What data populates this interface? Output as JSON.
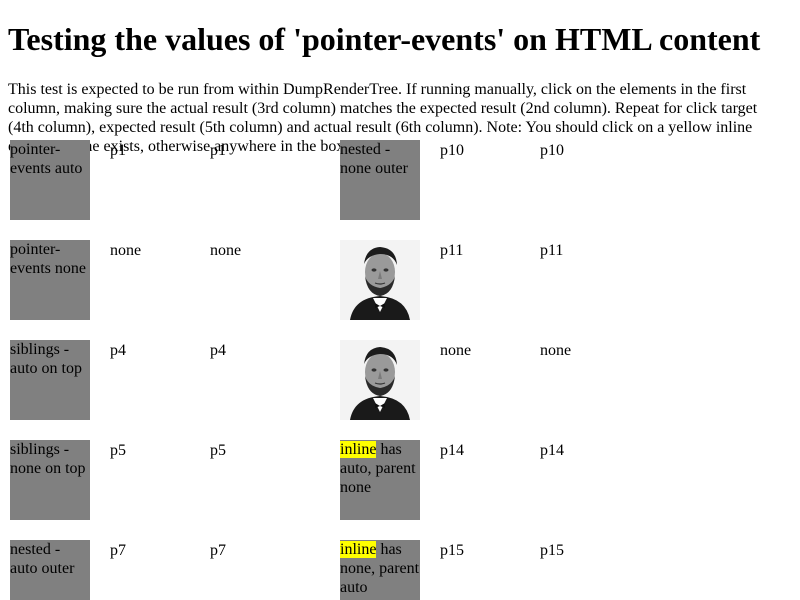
{
  "heading": "Testing the values of 'pointer-events' on HTML content",
  "description": "This test is expected to be run from within DumpRenderTree. If running manually, click on the elements in the first column, making sure the actual result (3rd column) matches the expected result (2nd column). Repeat for click target (4th column), expected result (5th column) and actual result (6th column). Note: You should click on a yellow inline element if one exists, otherwise anywhere in the box.",
  "rows": [
    {
      "target1": "pointer-events auto",
      "expected1": "p1",
      "actual1": "p1",
      "target2": "nested - none outer",
      "expected2": "p10",
      "actual2": "p10"
    },
    {
      "target1": "pointer-events none",
      "expected1": "none",
      "actual1": "none",
      "target2_image": "portrait-image",
      "expected2": "p11",
      "actual2": "p11"
    },
    {
      "target1": "siblings - auto on top",
      "expected1": "p4",
      "actual1": "p4",
      "target2_image": "portrait-image",
      "expected2": "none",
      "actual2": "none"
    },
    {
      "target1": "siblings - none on top",
      "expected1": "p5",
      "actual1": "p5",
      "target2_inline": "inline",
      "target2_rest": " has auto, parent none",
      "expected2": "p14",
      "actual2": "p14"
    },
    {
      "target1": "nested - auto outer",
      "expected1": "p7",
      "actual1": "p7",
      "target2_inline": "inline",
      "target2_rest": " has none, parent auto",
      "expected2": "p15",
      "actual2": "p15"
    }
  ],
  "colors": {
    "box": "#808080",
    "inline_highlight": "#ffff00"
  }
}
